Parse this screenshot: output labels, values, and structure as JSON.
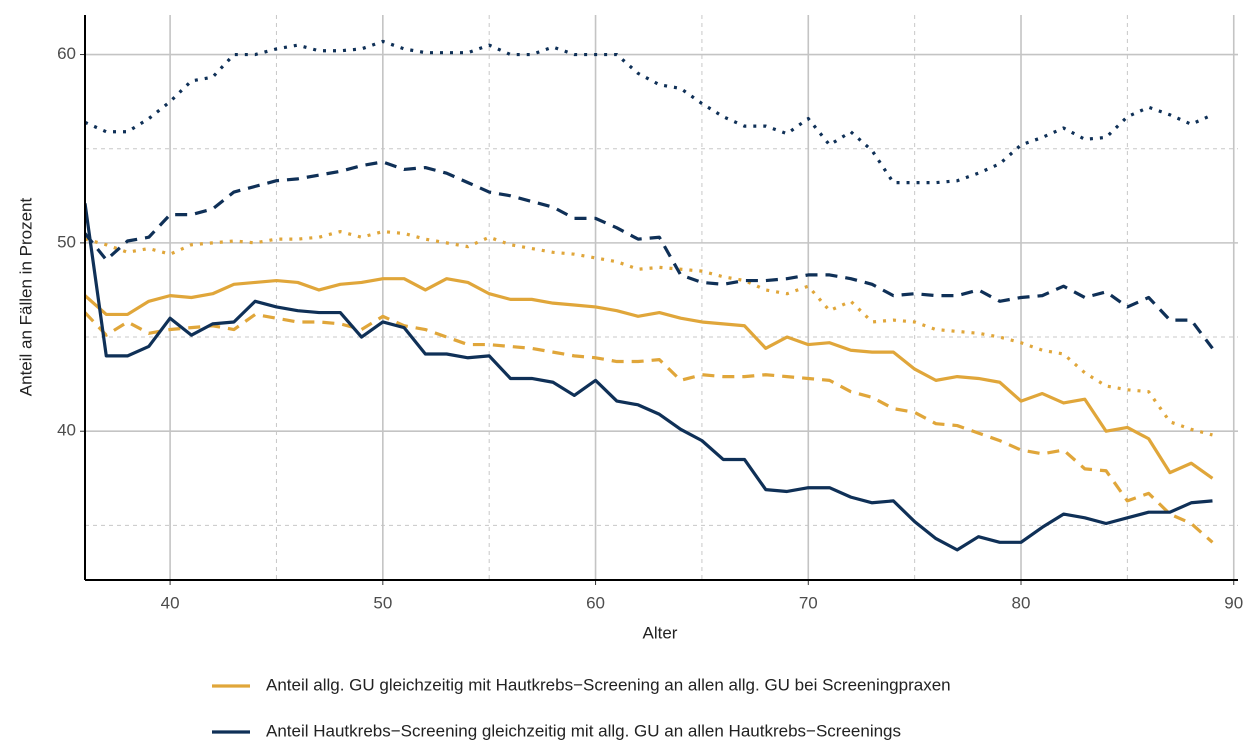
{
  "chart_data": {
    "type": "line",
    "x_label": "Alter",
    "y_label": "Anteil an Fällen in Prozent",
    "x": [
      36,
      37,
      38,
      39,
      40,
      41,
      42,
      43,
      44,
      45,
      46,
      47,
      48,
      49,
      50,
      51,
      52,
      53,
      54,
      55,
      56,
      57,
      58,
      59,
      60,
      61,
      62,
      63,
      64,
      65,
      66,
      67,
      68,
      69,
      70,
      71,
      72,
      73,
      74,
      75,
      76,
      77,
      78,
      79,
      80,
      81,
      82,
      83,
      84,
      85,
      86,
      87,
      88,
      89
    ],
    "xlim": [
      36,
      90.2
    ],
    "ylim": [
      32.1,
      62.1
    ],
    "xticks": [
      40,
      50,
      60,
      70,
      80,
      90
    ],
    "yticks": [
      40,
      50,
      60
    ],
    "x_minor_ticks": [
      45,
      55,
      65,
      75,
      85
    ],
    "y_minor_ticks": [
      35,
      45,
      55
    ],
    "grid": true,
    "legend_position": "bottom",
    "series": [
      {
        "name": "Anteil allg. GU gleichzeitig mit Hautkrebs−Screening an allen allg. GU bei Screeningpraxen",
        "color": "#e0a63a",
        "linestyle": "solid",
        "values": [
          47.2,
          46.2,
          46.2,
          46.9,
          47.2,
          47.1,
          47.3,
          47.8,
          47.9,
          48.0,
          47.9,
          47.5,
          47.8,
          47.9,
          48.1,
          48.1,
          47.5,
          48.1,
          47.9,
          47.3,
          47.0,
          47.0,
          46.8,
          46.7,
          46.6,
          46.4,
          46.1,
          46.3,
          46.0,
          45.8,
          45.7,
          45.6,
          44.4,
          45.0,
          44.6,
          44.7,
          44.3,
          44.2,
          44.2,
          43.3,
          42.7,
          42.9,
          42.8,
          42.6,
          41.6,
          42.0,
          41.5,
          41.7,
          40.0,
          40.2,
          39.6,
          37.8,
          38.3,
          37.5
        ]
      },
      {
        "color": "#e0a63a",
        "linestyle": "dashed",
        "values": [
          46.3,
          45.1,
          45.8,
          45.2,
          45.4,
          45.5,
          45.6,
          45.4,
          46.2,
          46.0,
          45.8,
          45.8,
          45.7,
          45.4,
          46.1,
          45.6,
          45.4,
          45.0,
          44.6,
          44.6,
          44.5,
          44.4,
          44.2,
          44.0,
          43.9,
          43.7,
          43.7,
          43.8,
          42.7,
          43.0,
          42.9,
          42.9,
          43.0,
          42.9,
          42.8,
          42.7,
          42.1,
          41.8,
          41.2,
          41.0,
          40.4,
          40.3,
          39.9,
          39.5,
          39.0,
          38.8,
          39.0,
          38.0,
          37.9,
          36.3,
          36.7,
          35.6,
          35.1,
          34.1
        ]
      },
      {
        "color": "#e0a63a",
        "linestyle": "dotted",
        "values": [
          50.2,
          49.9,
          49.5,
          49.7,
          49.4,
          49.9,
          50.0,
          50.1,
          50.0,
          50.2,
          50.2,
          50.3,
          50.6,
          50.3,
          50.6,
          50.5,
          50.2,
          50.0,
          49.8,
          50.3,
          49.9,
          49.7,
          49.5,
          49.4,
          49.2,
          49.0,
          48.6,
          48.7,
          48.6,
          48.5,
          48.2,
          48.0,
          47.5,
          47.3,
          47.7,
          46.4,
          46.9,
          45.8,
          45.9,
          45.8,
          45.4,
          45.3,
          45.2,
          45.0,
          44.7,
          44.3,
          44.1,
          43.1,
          42.4,
          42.2,
          42.1,
          40.5,
          40.1,
          39.8
        ]
      },
      {
        "name": "Anteil Hautkrebs−Screening gleichzeitig mit allg. GU an allen Hautkrebs−Screenings",
        "color": "#0f3057",
        "linestyle": "solid",
        "values": [
          52.1,
          44.0,
          44.0,
          44.5,
          46.0,
          45.1,
          45.7,
          45.8,
          46.9,
          46.6,
          46.4,
          46.3,
          46.3,
          45.0,
          45.8,
          45.5,
          44.1,
          44.1,
          43.9,
          44.0,
          42.8,
          42.8,
          42.6,
          41.9,
          42.7,
          41.6,
          41.4,
          40.9,
          40.1,
          39.5,
          38.5,
          38.5,
          36.9,
          36.8,
          37.0,
          37.0,
          36.5,
          36.2,
          36.3,
          35.2,
          34.3,
          33.7,
          34.4,
          34.1,
          34.1,
          34.9,
          35.6,
          35.4,
          35.1,
          35.4,
          35.7,
          35.7,
          36.2,
          36.3
        ]
      },
      {
        "color": "#0f3057",
        "linestyle": "dashed",
        "values": [
          50.5,
          49.1,
          50.1,
          50.3,
          51.5,
          51.5,
          51.8,
          52.7,
          53.0,
          53.3,
          53.4,
          53.6,
          53.8,
          54.1,
          54.3,
          53.9,
          54.0,
          53.7,
          53.2,
          52.7,
          52.5,
          52.2,
          51.9,
          51.3,
          51.3,
          50.8,
          50.2,
          50.3,
          48.3,
          47.9,
          47.8,
          48.0,
          48.0,
          48.1,
          48.3,
          48.3,
          48.1,
          47.8,
          47.2,
          47.3,
          47.2,
          47.2,
          47.5,
          46.9,
          47.1,
          47.2,
          47.7,
          47.1,
          47.4,
          46.6,
          47.1,
          45.9,
          45.9,
          44.4
        ]
      },
      {
        "color": "#0f3057",
        "linestyle": "dotted",
        "values": [
          56.4,
          55.9,
          55.9,
          56.6,
          57.5,
          58.6,
          58.8,
          60.0,
          60.0,
          60.3,
          60.5,
          60.2,
          60.2,
          60.3,
          60.7,
          60.3,
          60.1,
          60.1,
          60.1,
          60.5,
          60.0,
          60.0,
          60.4,
          60.0,
          60.0,
          60.0,
          59.0,
          58.4,
          58.2,
          57.4,
          56.7,
          56.2,
          56.2,
          55.8,
          56.6,
          55.2,
          55.9,
          54.9,
          53.2,
          53.2,
          53.2,
          53.3,
          53.7,
          54.2,
          55.2,
          55.6,
          56.1,
          55.5,
          55.6,
          56.7,
          57.2,
          56.8,
          56.3,
          56.8
        ]
      }
    ]
  }
}
